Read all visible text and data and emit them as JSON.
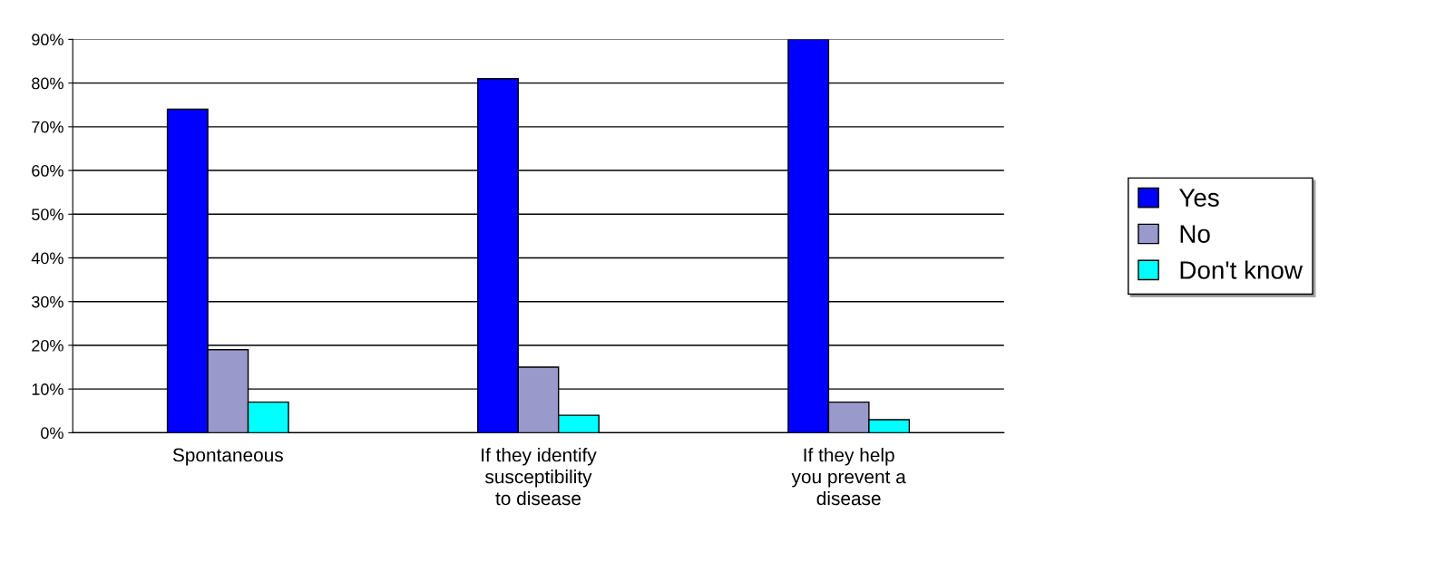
{
  "chart_data": {
    "type": "bar",
    "categories": [
      "Spontaneous",
      "If they identify\nsusceptibility\nto disease",
      "If they help\nyou prevent a\ndisease"
    ],
    "series": [
      {
        "name": "Yes",
        "color": "#0000ff",
        "values": [
          74,
          81,
          90
        ]
      },
      {
        "name": "No",
        "color": "#9999cc",
        "values": [
          19,
          15,
          7
        ]
      },
      {
        "name": "Don't know",
        "color": "#00ffff",
        "values": [
          7,
          4,
          3
        ]
      }
    ],
    "ylim": [
      0,
      90
    ],
    "yticks": [
      {
        "value": 0,
        "label": "0%"
      },
      {
        "value": 10,
        "label": "10%"
      },
      {
        "value": 20,
        "label": "20%"
      },
      {
        "value": 30,
        "label": "30%"
      },
      {
        "value": 40,
        "label": "40%"
      },
      {
        "value": 50,
        "label": "50%"
      },
      {
        "value": 60,
        "label": "60%"
      },
      {
        "value": 70,
        "label": "70%"
      },
      {
        "value": 80,
        "label": "80%"
      },
      {
        "value": 90,
        "label": "90%"
      }
    ],
    "grid": "y",
    "legend": "right"
  }
}
